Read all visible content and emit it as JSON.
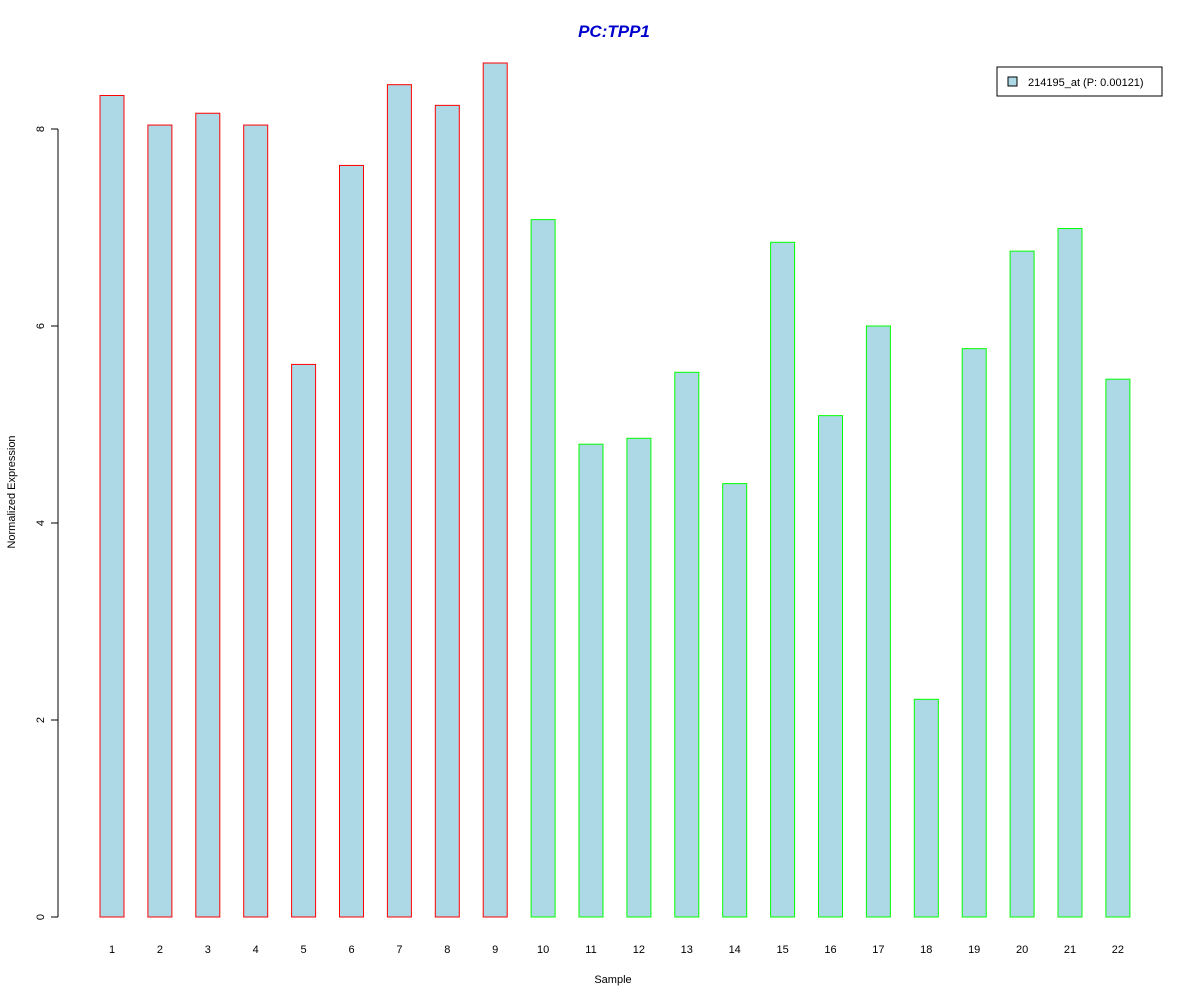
{
  "chart_data": {
    "type": "bar",
    "title": "PC:TPP1",
    "xlabel": "Sample",
    "ylabel": "Normalized Expression",
    "categories": [
      "1",
      "2",
      "3",
      "4",
      "5",
      "6",
      "7",
      "8",
      "9",
      "10",
      "11",
      "12",
      "13",
      "14",
      "15",
      "16",
      "17",
      "18",
      "19",
      "20",
      "21",
      "22"
    ],
    "series": [
      {
        "name": "214195_at (P: 0.00121)",
        "values": [
          8.34,
          8.04,
          8.16,
          8.04,
          5.61,
          7.63,
          8.45,
          8.24,
          8.67,
          7.08,
          4.8,
          4.86,
          5.53,
          4.4,
          6.85,
          5.09,
          6.0,
          2.21,
          5.77,
          6.76,
          6.99,
          5.46
        ]
      }
    ],
    "bar_border_colors": [
      "#ff0000",
      "#ff0000",
      "#ff0000",
      "#ff0000",
      "#ff0000",
      "#ff0000",
      "#ff0000",
      "#ff0000",
      "#ff0000",
      "#00ff00",
      "#00ff00",
      "#00ff00",
      "#00ff00",
      "#00ff00",
      "#00ff00",
      "#00ff00",
      "#00ff00",
      "#00ff00",
      "#00ff00",
      "#00ff00",
      "#00ff00",
      "#00ff00"
    ],
    "bar_fill_color": "#add8e6",
    "title_color": "#0000cd",
    "ylim": [
      0,
      8.7
    ],
    "yticks": [
      0,
      2,
      4,
      6,
      8
    ],
    "grid": false,
    "legend_position": "top-right"
  }
}
